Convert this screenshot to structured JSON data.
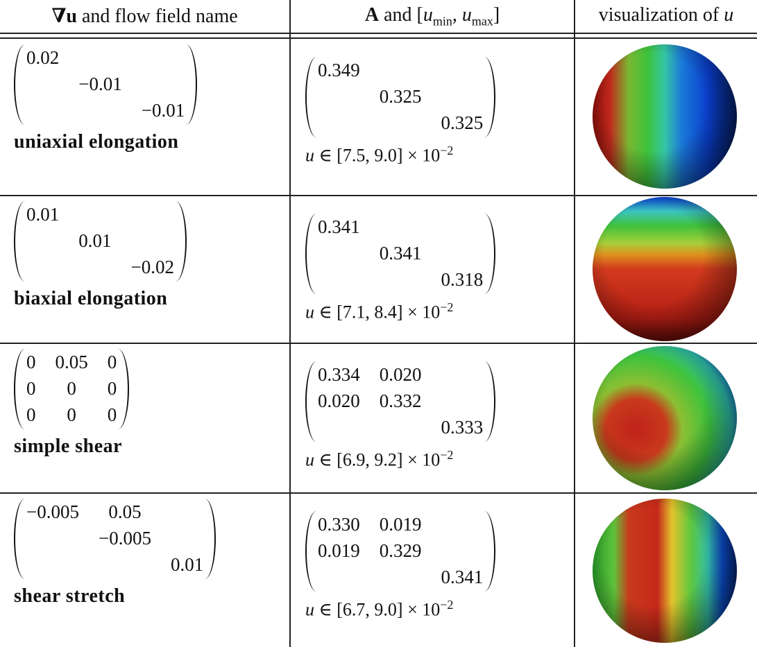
{
  "table": {
    "header": [
      {
        "symbol": "∇u",
        "text": "and flow field name"
      },
      {
        "symbol": "A",
        "open": "and [",
        "min_var": "u",
        "min_sub": "min",
        "sep": ",",
        "max_var": "u",
        "max_sub": "max",
        "close": "]"
      },
      {
        "text": "visualization of",
        "symbol": "u"
      }
    ],
    "rows": [
      {
        "grad": [
          [
            "0.02",
            null,
            null
          ],
          [
            null,
            "−0.01",
            null
          ],
          [
            null,
            null,
            "−0.01"
          ]
        ],
        "name": "uniaxial elongation",
        "A": [
          [
            "0.349",
            null,
            null
          ],
          [
            null,
            "0.325",
            null
          ],
          [
            null,
            null,
            "0.325"
          ]
        ],
        "range": {
          "var": "u",
          "text": "∈ [7.5, 9.0] × 10",
          "exponent": "−2"
        }
      },
      {
        "grad": [
          [
            "0.01",
            null,
            null
          ],
          [
            null,
            "0.01",
            null
          ],
          [
            null,
            null,
            "−0.02"
          ]
        ],
        "name": "biaxial elongation",
        "A": [
          [
            "0.341",
            null,
            null
          ],
          [
            null,
            "0.341",
            null
          ],
          [
            null,
            null,
            "0.318"
          ]
        ],
        "range": {
          "var": "u",
          "text": "∈ [7.1, 8.4] × 10",
          "exponent": "−2"
        }
      },
      {
        "grad": [
          [
            "0",
            "0.05",
            "0"
          ],
          [
            "0",
            "0",
            "0"
          ],
          [
            "0",
            "0",
            "0"
          ]
        ],
        "name": "simple shear",
        "A": [
          [
            "0.334",
            "0.020",
            null
          ],
          [
            "0.020",
            "0.332",
            null
          ],
          [
            null,
            null,
            "0.333"
          ]
        ],
        "range": {
          "var": "u",
          "text": "∈ [6.9, 9.2] × 10",
          "exponent": "−2"
        }
      },
      {
        "grad": [
          [
            "−0.005",
            "0.05",
            null
          ],
          [
            null,
            "−0.005",
            null
          ],
          [
            null,
            null,
            "0.01"
          ]
        ],
        "name": "shear stretch",
        "A": [
          [
            "0.330",
            "0.019",
            null
          ],
          [
            "0.019",
            "0.329",
            null
          ],
          [
            null,
            null,
            "0.341"
          ]
        ],
        "range": {
          "var": "u",
          "text": "∈ [6.7, 9.0] × 10",
          "exponent": "−2"
        }
      }
    ]
  }
}
